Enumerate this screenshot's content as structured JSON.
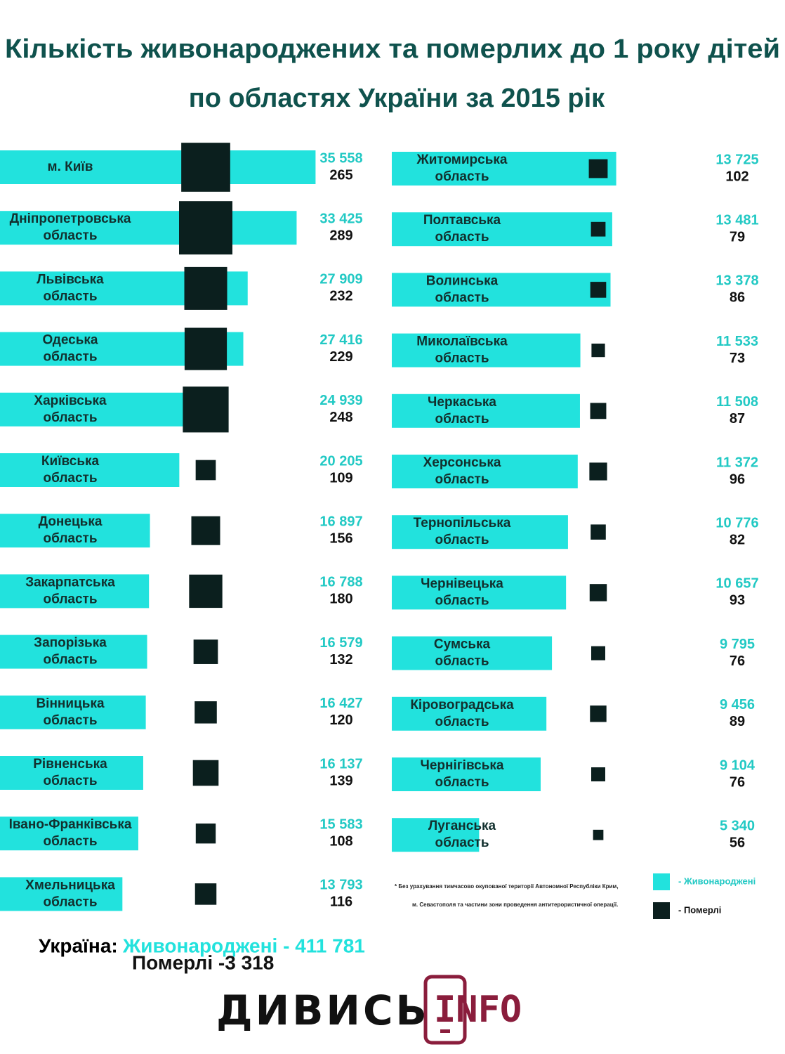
{
  "title": [
    "Кількість живонароджених та померлих до 1 року дітей",
    "по областях України за 2015 рік"
  ],
  "chart_data": [
    {
      "type": "bar",
      "categories": [
        "м. Київ",
        "Дніпропетровська область",
        "Львівська область",
        "Одеська область",
        "Харківська область",
        "Київська область",
        "Донецька область",
        "Закарпатська область",
        "Запорізька область",
        "Вінницька область",
        "Рівненська область",
        "Івано-Франківська область",
        "Хмельницька область"
      ],
      "series": [
        {
          "name": "- Живонароджені",
          "color": "#22e2dd",
          "values": [
            35558,
            33425,
            27909,
            27416,
            24939,
            20205,
            16897,
            16788,
            16579,
            16427,
            16137,
            15583,
            13793
          ],
          "value_labels": [
            "35 558",
            "33 425",
            "27 909",
            "27 416",
            "24 939",
            "20 205",
            "16 897",
            "16 788",
            "16 579",
            "16 427",
            "16 137",
            "15 583",
            "13 793"
          ]
        },
        {
          "name": "- Померлі",
          "color": "#0b1f1e",
          "values": [
            265,
            289,
            232,
            229,
            248,
            109,
            156,
            180,
            132,
            120,
            139,
            108,
            116
          ]
        }
      ],
      "xlim": [
        0,
        36000
      ]
    },
    {
      "type": "bar",
      "categories": [
        "Житомирська область",
        "Полтавська область",
        "Волинська область",
        "Миколаївська область",
        "Черкаська область",
        "Херсонська область",
        "Тернопільська область",
        "Чернівецька область",
        "Сумська область",
        "Кіровоградська область",
        "Чернігівська область",
        "Луганська область"
      ],
      "series": [
        {
          "color": "#22e2dd",
          "values": [
            13725,
            13481,
            13378,
            11533,
            11508,
            11372,
            10776,
            10657,
            9795,
            9456,
            9104,
            5340
          ],
          "value_labels": [
            "13 725",
            "13 481",
            "13 378",
            "11 533",
            "11 508",
            "11 372",
            "10 776",
            "10 657",
            "9 795",
            "9 456",
            "9 104",
            "5 340"
          ]
        },
        {
          "color": "#0b1f1e",
          "values": [
            102,
            79,
            86,
            73,
            87,
            96,
            82,
            93,
            76,
            89,
            76,
            56
          ]
        }
      ],
      "xlim": [
        0,
        14000
      ]
    }
  ],
  "footnote": [
    "* Без урахування тимчасово окупованої території Автономної Республіки Крим,",
    "м. Севастополя та частини зони проведення антитерористичної операції."
  ],
  "totals": {
    "label": "Україна:",
    "births": "Живонароджені - 411 781",
    "deaths": "Померлі -3 318"
  },
  "logo": [
    "ДИВИСЬ",
    "INFO"
  ]
}
